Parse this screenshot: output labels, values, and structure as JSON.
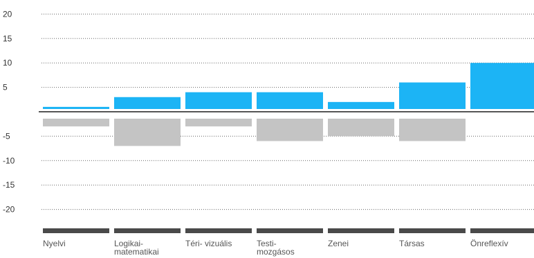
{
  "chart_data": {
    "type": "bar",
    "categories": [
      [
        "Nyelvi"
      ],
      [
        "Logikai-",
        "matematikai"
      ],
      [
        "Téri- vizuális"
      ],
      [
        "Testi-",
        "mozgásos"
      ],
      [
        "Zenei"
      ],
      [
        "Társas"
      ],
      [
        "Önreflexív"
      ]
    ],
    "series": [
      {
        "values": [
          1,
          3,
          4,
          4,
          2,
          6,
          10
        ],
        "color": "#1cb4f5"
      },
      {
        "values": [
          -3,
          -7,
          -3,
          -6,
          -5,
          -6,
          0
        ],
        "color": "#c4c4c4"
      }
    ],
    "yticks": [
      20,
      15,
      10,
      5,
      -5,
      -10,
      -15,
      -20
    ],
    "ylim": [
      -20,
      20
    ],
    "grid": true,
    "gridline_style": "dotted",
    "zero_line_color": "#555555",
    "category_bar_color": "#4a4a4a"
  }
}
